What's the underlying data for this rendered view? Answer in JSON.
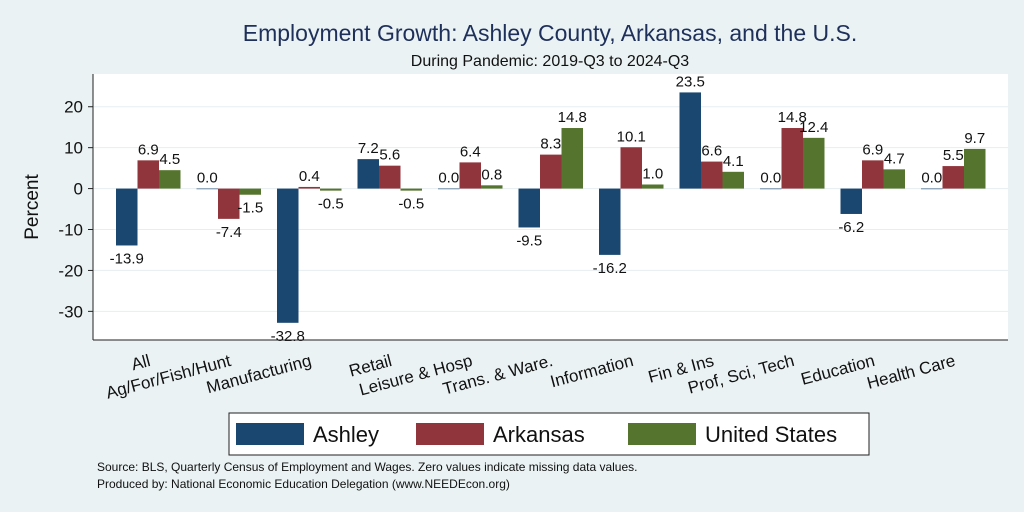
{
  "chart_data": {
    "type": "bar",
    "title": "Employment Growth: Ashley County, Arkansas, and the U.S.",
    "subtitle": "During Pandemic: 2019-Q3 to 2024-Q3",
    "xlabel": "",
    "ylabel": "Percent",
    "ylim": [
      -37,
      28
    ],
    "yticks": [
      20,
      10,
      0,
      -10,
      -20,
      -30
    ],
    "ytick_labels": [
      "20",
      "10",
      "0",
      "-10",
      "-20",
      "-30"
    ],
    "grid": true,
    "legend_position": "bottom",
    "categories": [
      "All",
      "Ag/For/Fish/Hunt",
      "Manufacturing",
      "Retail",
      "Leisure & Hosp",
      "Trans. & Ware.",
      "Information",
      "Fin & Ins",
      "Prof, Sci, Tech",
      "Education",
      "Health Care"
    ],
    "series": [
      {
        "name": "Ashley",
        "color": "#1a476f",
        "values": [
          -13.9,
          0.0,
          -32.8,
          7.2,
          0.0,
          -9.5,
          -16.2,
          23.5,
          0.0,
          -6.2,
          0.0
        ],
        "labels": [
          "-13.9",
          "0.0",
          "-32.8",
          "7.2",
          "0.0",
          "-9.5",
          "-16.2",
          "23.5",
          "0.0",
          "-6.2",
          "0.0"
        ]
      },
      {
        "name": "Arkansas",
        "color": "#90353b",
        "values": [
          6.9,
          -7.4,
          0.4,
          5.6,
          6.4,
          8.3,
          10.1,
          6.6,
          14.8,
          6.9,
          5.5
        ],
        "labels": [
          "6.9",
          "-7.4",
          "0.4",
          "5.6",
          "6.4",
          "8.3",
          "10.1",
          "6.6",
          "14.8",
          "6.9",
          "5.5"
        ]
      },
      {
        "name": "United States",
        "color": "#55752f",
        "values": [
          4.5,
          -1.5,
          -0.5,
          -0.5,
          0.8,
          14.8,
          1.0,
          4.1,
          12.4,
          4.7,
          9.7
        ],
        "labels": [
          "4.5",
          "-1.5",
          "-0.5",
          "-0.5",
          "0.8",
          "14.8",
          "1.0",
          "4.1",
          "12.4",
          "4.7",
          "9.7"
        ]
      }
    ],
    "footnotes": [
      "Source: BLS, Quarterly Census of Employment and Wages. Zero values indicate missing data values.",
      "Produced by: National Economic Education Delegation (www.NEEDEcon.org)"
    ]
  }
}
